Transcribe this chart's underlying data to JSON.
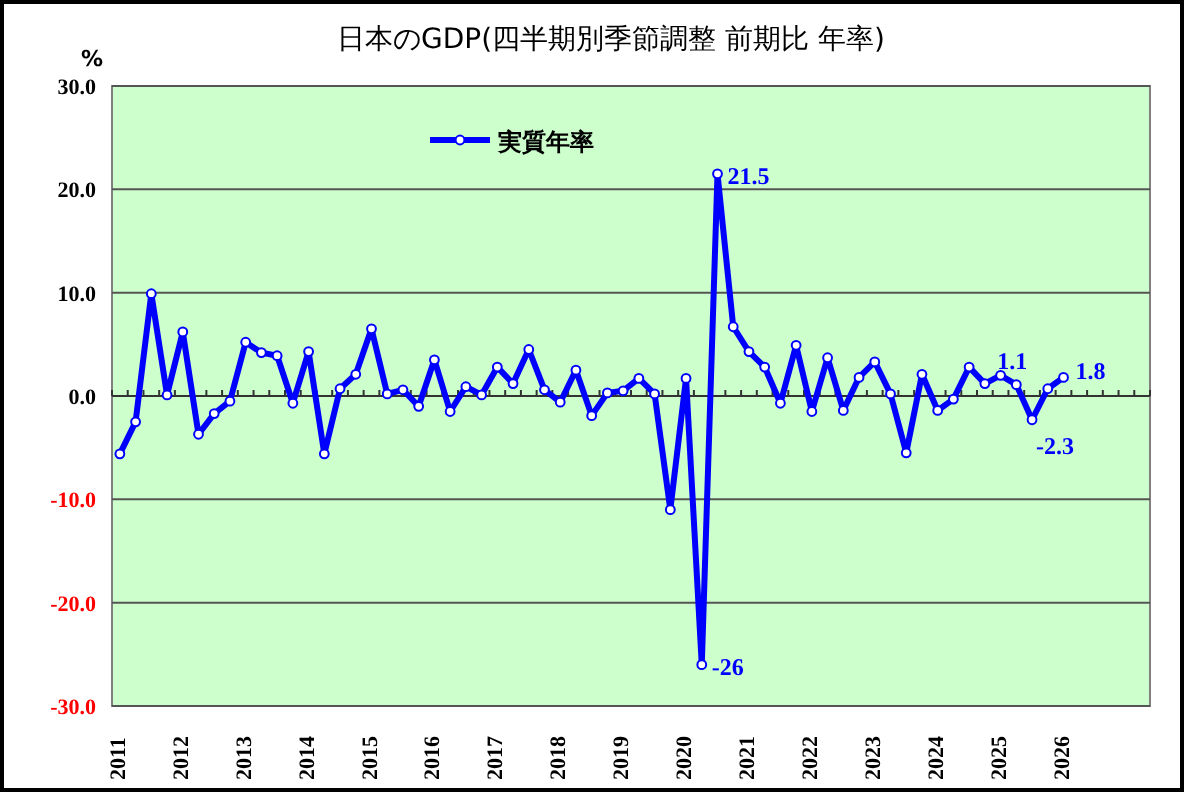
{
  "chart_data": {
    "type": "line",
    "title": "日本のGDP(四半期別季節調整  前期比  年率)",
    "ylabel": "%",
    "categories": [
      "2011",
      null,
      null,
      null,
      "2012",
      null,
      null,
      null,
      "2013",
      null,
      null,
      null,
      "2014",
      null,
      null,
      null,
      "2015",
      null,
      null,
      null,
      "2016",
      null,
      null,
      null,
      "2017",
      null,
      null,
      null,
      "2018",
      null,
      null,
      null,
      "2019",
      null,
      null,
      null,
      "2020",
      null,
      null,
      null,
      "2021",
      null,
      null,
      null,
      "2022",
      null,
      null,
      null,
      "2023",
      null,
      null,
      null,
      "2024",
      null,
      null,
      null,
      "2025",
      null,
      null,
      null,
      "2026",
      null,
      null,
      null,
      null,
      null
    ],
    "series": [
      {
        "name": "実質年率",
        "color": "#0000ff",
        "values": [
          -5.6,
          -2.5,
          9.9,
          0.1,
          6.2,
          -3.7,
          -1.7,
          -0.5,
          5.2,
          4.2,
          3.9,
          -0.7,
          4.3,
          -5.6,
          0.7,
          2.1,
          6.5,
          0.2,
          0.6,
          -1.0,
          3.5,
          -1.5,
          0.9,
          0.1,
          2.8,
          1.2,
          4.5,
          0.6,
          -0.6,
          2.5,
          -1.9,
          0.3,
          0.5,
          1.7,
          0.2,
          -11.0,
          1.7,
          -26,
          21.5,
          6.7,
          4.3,
          2.8,
          -0.7,
          4.9,
          -1.5,
          3.7,
          -1.4,
          1.8,
          3.3,
          0.2,
          -5.5,
          2.1,
          -1.4,
          -0.3,
          2.8,
          1.2,
          2.0,
          1.1,
          -2.3,
          0.7,
          1.8,
          null,
          null,
          null,
          null,
          null
        ],
        "value_labels": [
          null,
          null,
          null,
          null,
          null,
          null,
          null,
          null,
          null,
          null,
          null,
          null,
          null,
          null,
          null,
          null,
          null,
          null,
          null,
          null,
          null,
          null,
          null,
          null,
          null,
          null,
          null,
          null,
          null,
          null,
          null,
          null,
          null,
          null,
          null,
          null,
          null,
          "-26",
          "21.5",
          null,
          null,
          null,
          null,
          null,
          null,
          null,
          null,
          null,
          null,
          null,
          null,
          null,
          null,
          null,
          null,
          null,
          null,
          "1.1",
          "-2.3",
          null,
          "1.8",
          null,
          null,
          null,
          null,
          null
        ]
      }
    ],
    "ylim": [
      -30,
      30
    ],
    "yticks": [
      {
        "value": 30,
        "label": "30.0"
      },
      {
        "value": 20,
        "label": "20.0"
      },
      {
        "value": 10,
        "label": "10.0"
      },
      {
        "value": 0,
        "label": "0.0"
      },
      {
        "value": -10,
        "label": "-10.0"
      },
      {
        "value": -20,
        "label": "-20.0"
      },
      {
        "value": -30,
        "label": "-30.0"
      }
    ],
    "grid": "y",
    "legend": "top",
    "marker": "circle",
    "line_style": "solid"
  }
}
